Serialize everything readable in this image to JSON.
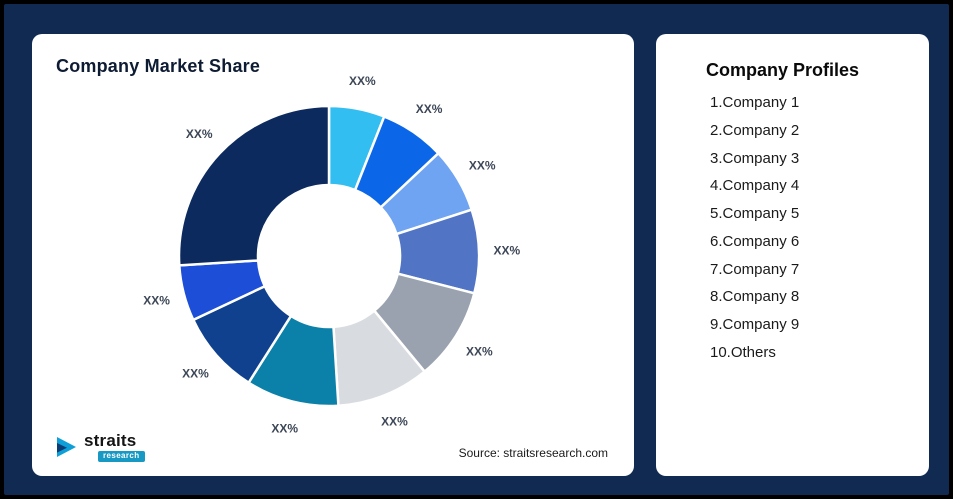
{
  "theme": {
    "background": "#102A52",
    "card_bg": "#FFFFFF",
    "title_color": "#0D1B33",
    "label_color": "#3C4656"
  },
  "left_card": {
    "title": "Company Market Share",
    "source": "Source: straitsresearch.com"
  },
  "logo": {
    "name": "straits",
    "sub": "research"
  },
  "right_card": {
    "title": "Company Profiles",
    "items": [
      "1.Company 1",
      "2.Company 2",
      "3.Company 3",
      "4.Company 4",
      "5.Company 5",
      "6.Company 6",
      "7.Company 7",
      "8.Company 8",
      "9.Company 9",
      "10.Others"
    ]
  },
  "chart_data": {
    "type": "pie",
    "donut": true,
    "title": "Company Market Share",
    "start_angle_deg": 0,
    "direction": "clockwise",
    "legend_position": "none",
    "segments": [
      {
        "name": "Company 1",
        "label": "XX%",
        "value": 6,
        "color": "#33BEF2"
      },
      {
        "name": "Company 2",
        "label": "XX%",
        "value": 7,
        "color": "#0B67E8"
      },
      {
        "name": "Company 3",
        "label": "XX%",
        "value": 7,
        "color": "#6FA4F2"
      },
      {
        "name": "Company 4",
        "label": "XX%",
        "value": 9,
        "color": "#5174C4"
      },
      {
        "name": "Company 5",
        "label": "XX%",
        "value": 10,
        "color": "#99A2AE"
      },
      {
        "name": "Company 6",
        "label": "XX%",
        "value": 10,
        "color": "#D8DBDF"
      },
      {
        "name": "Company 7",
        "label": "XX%",
        "value": 10,
        "color": "#0B80A8"
      },
      {
        "name": "Company 8",
        "label": "XX%",
        "value": 9,
        "color": "#10418F"
      },
      {
        "name": "Company 9",
        "label": "XX%",
        "value": 6,
        "color": "#1C4ED8"
      },
      {
        "name": "Others",
        "label": "XX%",
        "value": 26,
        "color": "#0C2A5E"
      }
    ]
  }
}
